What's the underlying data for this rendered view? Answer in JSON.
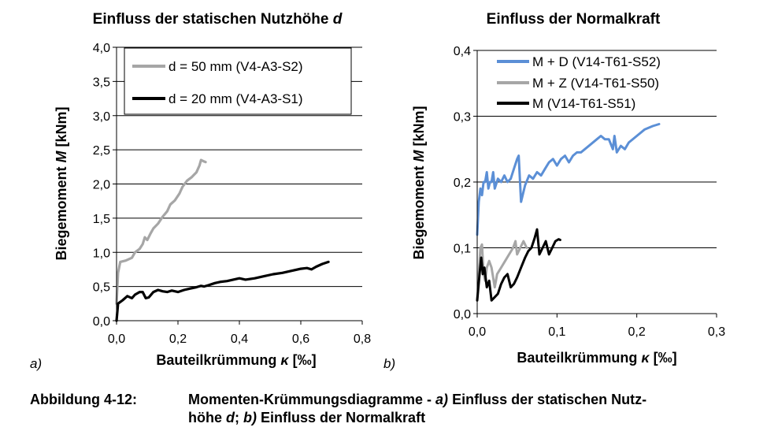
{
  "caption": {
    "prefix": "Abbildung 4-12:",
    "line1_a": "Momenten-Krümmungsdiagramme - ",
    "line1_b": "a)",
    "line1_c": " Einfluss der statischen Nutz-",
    "line2_a": "höhe ",
    "line2_b": "d",
    "line2_c": "; ",
    "line2_d": "b)",
    "line2_e": " Einfluss der Normalkraft"
  },
  "chart_data": [
    {
      "type": "line",
      "panel_label": "a)",
      "title": "Einfluss der statischen Nutzhöhe ",
      "title_var": "d",
      "xlabel_text": "Bauteilkrümmung ",
      "xlabel_var": "κ",
      "xlabel_unit": " [‰]",
      "ylabel_text": "Biegemoment ",
      "ylabel_var": "M",
      "ylabel_unit": " [kNm]",
      "xlim": [
        0,
        0.8
      ],
      "ylim": [
        0,
        4.0
      ],
      "xticks": [
        0,
        0.2,
        0.4,
        0.6,
        0.8
      ],
      "yticks": [
        0,
        0.5,
        1.0,
        1.5,
        2.0,
        2.5,
        3.0,
        3.5,
        4.0
      ],
      "xtick_labels": [
        "0,0",
        "0,2",
        "0,4",
        "0,6",
        "0,8"
      ],
      "ytick_labels": [
        "0,0",
        "0,5",
        "1,0",
        "1,5",
        "2,0",
        "2,5",
        "3,0",
        "3,5",
        "4,0"
      ],
      "grid": "horizontal",
      "legend_position": "top",
      "series": [
        {
          "name": "d = 50 mm (V4-A3-S2)",
          "color": "#a6a6a6",
          "points": [
            [
              0,
              0.25
            ],
            [
              0.005,
              0.7
            ],
            [
              0.012,
              0.86
            ],
            [
              0.03,
              0.88
            ],
            [
              0.05,
              0.92
            ],
            [
              0.06,
              1.0
            ],
            [
              0.075,
              1.05
            ],
            [
              0.085,
              1.12
            ],
            [
              0.092,
              1.22
            ],
            [
              0.1,
              1.18
            ],
            [
              0.11,
              1.27
            ],
            [
              0.12,
              1.35
            ],
            [
              0.135,
              1.42
            ],
            [
              0.15,
              1.52
            ],
            [
              0.165,
              1.6
            ],
            [
              0.175,
              1.7
            ],
            [
              0.19,
              1.76
            ],
            [
              0.205,
              1.86
            ],
            [
              0.215,
              1.96
            ],
            [
              0.23,
              2.05
            ],
            [
              0.245,
              2.1
            ],
            [
              0.26,
              2.17
            ],
            [
              0.27,
              2.27
            ],
            [
              0.275,
              2.35
            ],
            [
              0.285,
              2.33
            ],
            [
              0.29,
              2.32
            ]
          ]
        },
        {
          "name": "d = 20 mm (V4-A3-S1)",
          "color": "#000000",
          "points": [
            [
              0,
              0
            ],
            [
              0.005,
              0.25
            ],
            [
              0.02,
              0.3
            ],
            [
              0.035,
              0.36
            ],
            [
              0.05,
              0.33
            ],
            [
              0.06,
              0.38
            ],
            [
              0.075,
              0.42
            ],
            [
              0.085,
              0.42
            ],
            [
              0.095,
              0.33
            ],
            [
              0.105,
              0.34
            ],
            [
              0.12,
              0.42
            ],
            [
              0.135,
              0.45
            ],
            [
              0.15,
              0.43
            ],
            [
              0.165,
              0.42
            ],
            [
              0.18,
              0.44
            ],
            [
              0.2,
              0.42
            ],
            [
              0.22,
              0.45
            ],
            [
              0.24,
              0.47
            ],
            [
              0.26,
              0.49
            ],
            [
              0.275,
              0.51
            ],
            [
              0.285,
              0.5
            ],
            [
              0.3,
              0.52
            ],
            [
              0.32,
              0.55
            ],
            [
              0.34,
              0.57
            ],
            [
              0.36,
              0.58
            ],
            [
              0.38,
              0.6
            ],
            [
              0.4,
              0.62
            ],
            [
              0.42,
              0.6
            ],
            [
              0.45,
              0.62
            ],
            [
              0.48,
              0.65
            ],
            [
              0.51,
              0.68
            ],
            [
              0.54,
              0.7
            ],
            [
              0.57,
              0.73
            ],
            [
              0.6,
              0.76
            ],
            [
              0.62,
              0.77
            ],
            [
              0.635,
              0.75
            ],
            [
              0.65,
              0.79
            ],
            [
              0.67,
              0.83
            ],
            [
              0.69,
              0.86
            ]
          ]
        }
      ]
    },
    {
      "type": "line",
      "panel_label": "b)",
      "title": "Einfluss der Normalkraft",
      "xlabel_text": "Bauteilkrümmung ",
      "xlabel_var": "κ",
      "xlabel_unit": " [‰]",
      "ylabel_text": "Biegemoment ",
      "ylabel_var": "M",
      "ylabel_unit": " [kNm]",
      "xlim": [
        0,
        0.3
      ],
      "ylim": [
        0,
        0.4
      ],
      "xticks": [
        0,
        0.1,
        0.2,
        0.3
      ],
      "yticks": [
        0,
        0.1,
        0.2,
        0.3,
        0.4
      ],
      "xtick_labels": [
        "0,0",
        "0,1",
        "0,2",
        "0,3"
      ],
      "ytick_labels": [
        "0,0",
        "0,1",
        "0,2",
        "0,3",
        "0,4"
      ],
      "grid": "horizontal",
      "legend_position": "top",
      "series": [
        {
          "name": "M + D (V14-T61-S52)",
          "color": "#5b8fd6",
          "points": [
            [
              0,
              0.12
            ],
            [
              0.002,
              0.17
            ],
            [
              0.004,
              0.19
            ],
            [
              0.006,
              0.18
            ],
            [
              0.008,
              0.2
            ],
            [
              0.01,
              0.2
            ],
            [
              0.012,
              0.215
            ],
            [
              0.014,
              0.19
            ],
            [
              0.016,
              0.2
            ],
            [
              0.018,
              0.2
            ],
            [
              0.02,
              0.215
            ],
            [
              0.022,
              0.19
            ],
            [
              0.026,
              0.205
            ],
            [
              0.03,
              0.2
            ],
            [
              0.034,
              0.21
            ],
            [
              0.038,
              0.2
            ],
            [
              0.042,
              0.205
            ],
            [
              0.046,
              0.22
            ],
            [
              0.05,
              0.235
            ],
            [
              0.052,
              0.24
            ],
            [
              0.055,
              0.17
            ],
            [
              0.06,
              0.195
            ],
            [
              0.065,
              0.21
            ],
            [
              0.07,
              0.205
            ],
            [
              0.075,
              0.215
            ],
            [
              0.08,
              0.21
            ],
            [
              0.085,
              0.22
            ],
            [
              0.09,
              0.23
            ],
            [
              0.095,
              0.235
            ],
            [
              0.1,
              0.225
            ],
            [
              0.105,
              0.235
            ],
            [
              0.11,
              0.24
            ],
            [
              0.115,
              0.23
            ],
            [
              0.12,
              0.24
            ],
            [
              0.125,
              0.245
            ],
            [
              0.13,
              0.245
            ],
            [
              0.14,
              0.255
            ],
            [
              0.15,
              0.265
            ],
            [
              0.155,
              0.27
            ],
            [
              0.16,
              0.265
            ],
            [
              0.165,
              0.265
            ],
            [
              0.17,
              0.25
            ],
            [
              0.172,
              0.27
            ],
            [
              0.175,
              0.245
            ],
            [
              0.18,
              0.255
            ],
            [
              0.185,
              0.25
            ],
            [
              0.19,
              0.26
            ],
            [
              0.2,
              0.27
            ],
            [
              0.21,
              0.28
            ],
            [
              0.22,
              0.285
            ],
            [
              0.228,
              0.288
            ]
          ]
        },
        {
          "name": "M + Z (V14-T61-S50)",
          "color": "#a6a6a6",
          "points": [
            [
              0,
              0.02
            ],
            [
              0.002,
              0.06
            ],
            [
              0.004,
              0.1
            ],
            [
              0.006,
              0.105
            ],
            [
              0.008,
              0.06
            ],
            [
              0.01,
              0.05
            ],
            [
              0.012,
              0.07
            ],
            [
              0.015,
              0.08
            ],
            [
              0.018,
              0.07
            ],
            [
              0.022,
              0.04
            ],
            [
              0.025,
              0.06
            ],
            [
              0.03,
              0.07
            ],
            [
              0.035,
              0.08
            ],
            [
              0.04,
              0.09
            ],
            [
              0.045,
              0.1
            ],
            [
              0.048,
              0.11
            ],
            [
              0.05,
              0.09
            ],
            [
              0.054,
              0.1
            ],
            [
              0.058,
              0.11
            ],
            [
              0.062,
              0.1
            ]
          ]
        },
        {
          "name": "M (V14-T61-S51)",
          "color": "#000000",
          "points": [
            [
              0,
              0.02
            ],
            [
              0.003,
              0.06
            ],
            [
              0.005,
              0.085
            ],
            [
              0.007,
              0.06
            ],
            [
              0.009,
              0.07
            ],
            [
              0.012,
              0.04
            ],
            [
              0.015,
              0.05
            ],
            [
              0.018,
              0.02
            ],
            [
              0.022,
              0.025
            ],
            [
              0.026,
              0.03
            ],
            [
              0.03,
              0.045
            ],
            [
              0.034,
              0.055
            ],
            [
              0.038,
              0.06
            ],
            [
              0.042,
              0.04
            ],
            [
              0.046,
              0.045
            ],
            [
              0.05,
              0.055
            ],
            [
              0.055,
              0.07
            ],
            [
              0.06,
              0.085
            ],
            [
              0.064,
              0.095
            ],
            [
              0.068,
              0.1
            ],
            [
              0.072,
              0.115
            ],
            [
              0.075,
              0.128
            ],
            [
              0.078,
              0.09
            ],
            [
              0.082,
              0.1
            ],
            [
              0.086,
              0.11
            ],
            [
              0.09,
              0.09
            ],
            [
              0.094,
              0.1
            ],
            [
              0.098,
              0.11
            ],
            [
              0.102,
              0.113
            ],
            [
              0.104,
              0.112
            ]
          ]
        }
      ]
    }
  ]
}
